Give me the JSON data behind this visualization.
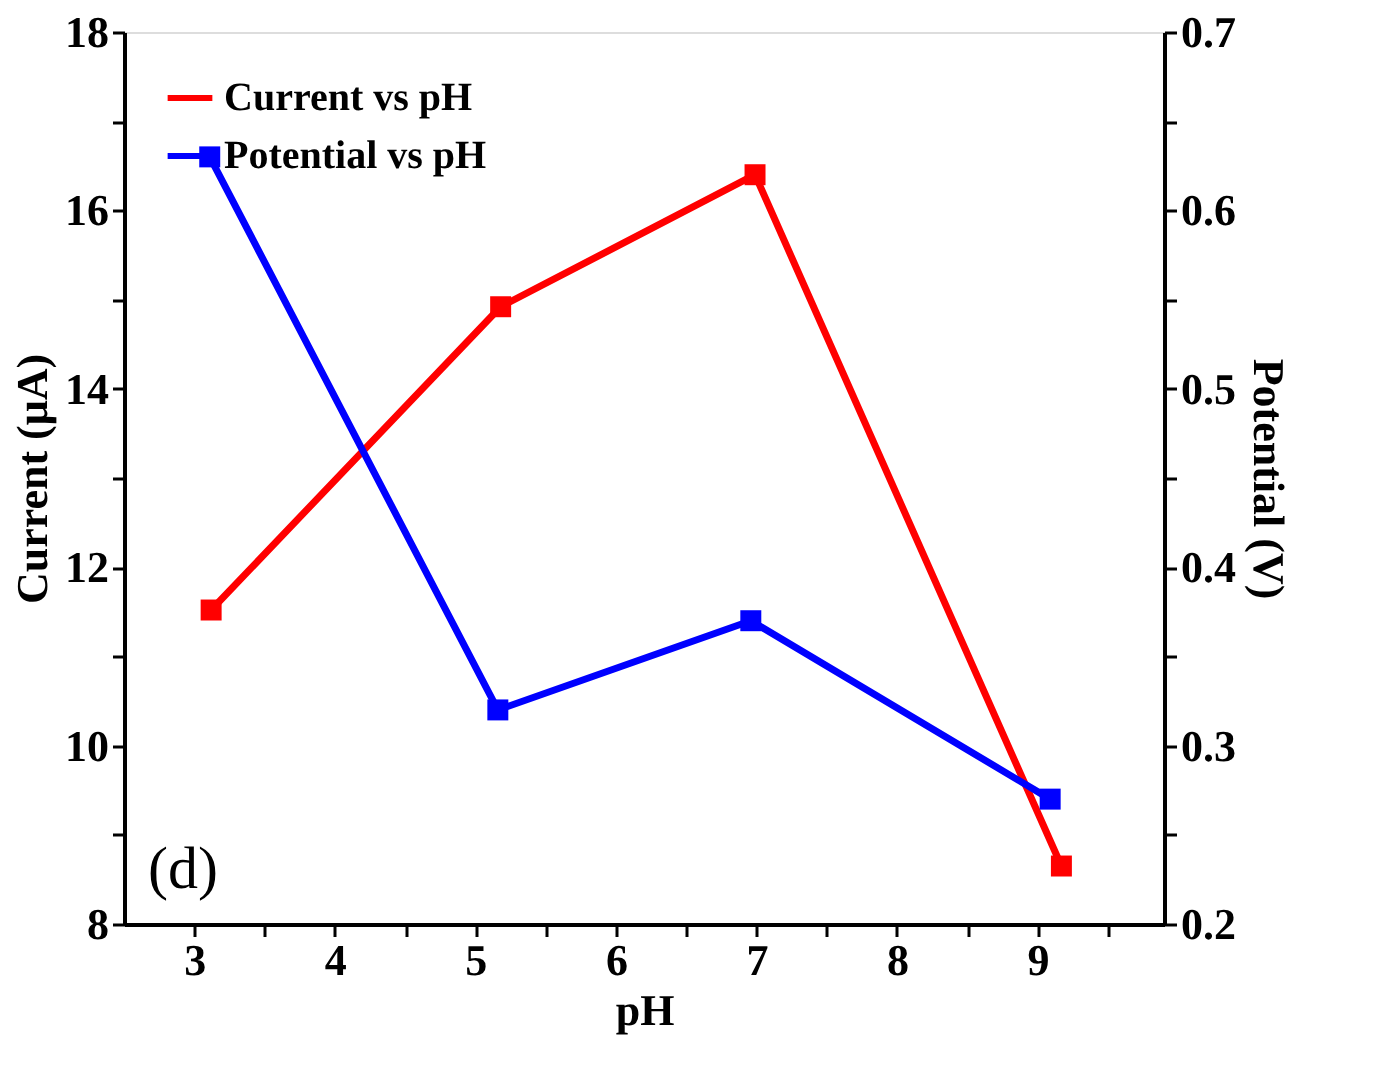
{
  "chart_data": {
    "type": "line",
    "xlabel": "pH",
    "ylabel": "Current (μA)",
    "y2label": "Potential (V)",
    "xlim": [
      2.5,
      9.9
    ],
    "xticks": [
      3,
      {
        "value": 3.5,
        "label": null
      },
      4,
      {
        "value": 4.5,
        "label": null
      },
      5,
      {
        "value": 5.5,
        "label": null
      },
      6,
      {
        "value": 6.5,
        "label": null
      },
      7,
      {
        "value": 7.5,
        "label": null
      },
      8,
      {
        "value": 8.5,
        "label": null
      },
      9,
      {
        "value": 9.5,
        "label": null
      }
    ],
    "ylim": [
      8,
      18
    ],
    "yticks": [
      8,
      {
        "value": 9,
        "label": null
      },
      10,
      {
        "value": 11,
        "label": null
      },
      12,
      {
        "value": 13,
        "label": null
      },
      14,
      {
        "value": 15,
        "label": null
      },
      16,
      {
        "value": 17,
        "label": null
      },
      18
    ],
    "y2lim": [
      0.2,
      0.7
    ],
    "y2ticks": [
      0.2,
      {
        "value": 0.25,
        "label": null
      },
      0.3,
      {
        "value": 0.35,
        "label": null
      },
      0.4,
      {
        "value": 0.45,
        "label": null
      },
      0.5,
      {
        "value": 0.55,
        "label": null
      },
      0.6,
      {
        "value": 0.65,
        "label": null
      },
      0.7
    ],
    "series": [
      {
        "name": "Current vs pH",
        "color": "#ff0000",
        "x": [
          3.12,
          5.18,
          6.99,
          9.17
        ],
        "values": [
          11.52,
          14.92,
          16.4,
          8.65
        ]
      },
      {
        "name": "Potential vs pH",
        "color": "#0000ff",
        "axis": "y2",
        "x": [
          3.11,
          5.16,
          6.96,
          9.09
        ],
        "values": [
          0.63,
          0.32,
          0.37,
          0.27
        ]
      }
    ],
    "marker": "square",
    "line_style": "solid",
    "legend": "top left",
    "grid": false,
    "annotations": [
      "(d)"
    ]
  }
}
